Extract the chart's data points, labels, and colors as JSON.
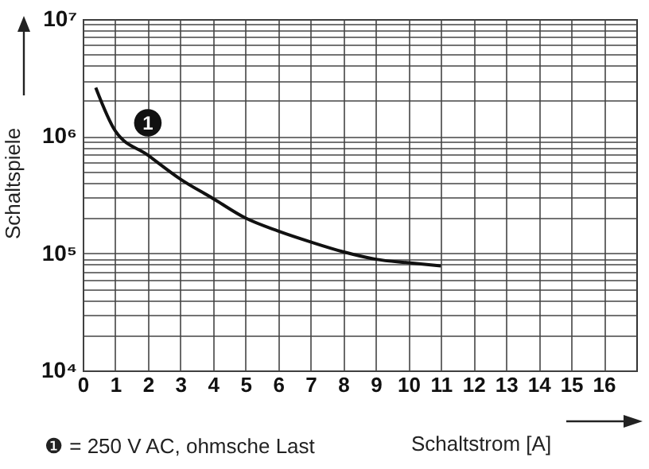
{
  "chart_data": {
    "type": "line",
    "xlabel": "Schaltstrom [A]",
    "ylabel": "Schaltspiele",
    "x": [
      0.4,
      1,
      2,
      3,
      4,
      5,
      6,
      7,
      8,
      9,
      10,
      11
    ],
    "series": [
      {
        "color": "#111111",
        "values": [
          2600000,
          1110000,
          690000,
          430000,
          294000,
          200000,
          155000,
          125000,
          103000,
          89000,
          83000,
          78000
        ]
      }
    ],
    "xlim": [
      0,
      17
    ],
    "xticks": [
      0,
      1,
      2,
      3,
      4,
      5,
      6,
      7,
      8,
      9,
      10,
      11,
      12,
      13,
      14,
      15,
      16
    ],
    "ylim": [
      10000,
      10000000
    ],
    "log": true,
    "yticks": [
      {
        "value": 10000,
        "label": "10⁴"
      },
      {
        "value": 20000,
        "label": null
      },
      {
        "value": 30000,
        "label": null
      },
      {
        "value": 40000,
        "label": null
      },
      {
        "value": 50000,
        "label": null
      },
      {
        "value": 60000,
        "label": null
      },
      {
        "value": 70000,
        "label": null
      },
      {
        "value": 80000,
        "label": null
      },
      {
        "value": 90000,
        "label": null
      },
      {
        "value": 100000,
        "label": "10⁵"
      },
      {
        "value": 200000,
        "label": null
      },
      {
        "value": 300000,
        "label": null
      },
      {
        "value": 400000,
        "label": null
      },
      {
        "value": 500000,
        "label": null
      },
      {
        "value": 600000,
        "label": null
      },
      {
        "value": 700000,
        "label": null
      },
      {
        "value": 800000,
        "label": null
      },
      {
        "value": 900000,
        "label": null
      },
      {
        "value": 1000000,
        "label": "10⁶"
      },
      {
        "value": 2000000,
        "label": null
      },
      {
        "value": 3000000,
        "label": null
      },
      {
        "value": 4000000,
        "label": null
      },
      {
        "value": 5000000,
        "label": null
      },
      {
        "value": 6000000,
        "label": null
      },
      {
        "value": 7000000,
        "label": null
      },
      {
        "value": 8000000,
        "label": null
      },
      {
        "value": 9000000,
        "label": null
      },
      {
        "value": 10000000,
        "label": "10⁷"
      }
    ],
    "grid": true,
    "marker": "none",
    "line_style": "solid",
    "annotations": [
      {
        "text": "1",
        "x": 2,
        "y": 1300000
      },
      "❶ = 250 V AC, ohmsche Last"
    ]
  }
}
